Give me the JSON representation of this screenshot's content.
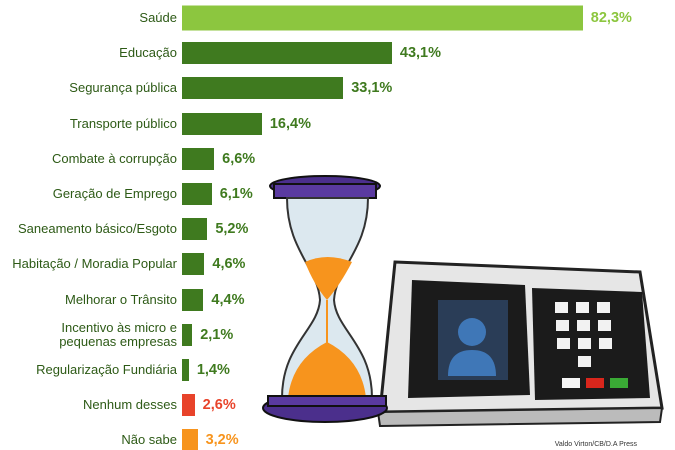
{
  "chart_data": {
    "type": "bar",
    "orientation": "horizontal",
    "categories": [
      "Saúde",
      "Educação",
      "Segurança pública",
      "Transporte público",
      "Combate à corrupção",
      "Geração de Emprego",
      "Saneamento básico/Esgoto",
      "Habitação / Moradia Popular",
      "Melhorar o Trânsito",
      "Incentivo às micro e\npequenas empresas",
      "Regularização Fundiária",
      "Nenhum desses",
      "Não sabe"
    ],
    "values": [
      82.3,
      43.1,
      33.1,
      16.4,
      6.6,
      6.1,
      5.2,
      4.6,
      4.4,
      2.1,
      1.4,
      2.6,
      3.2
    ],
    "value_labels": [
      "82,3%",
      "43,1%",
      "33,1%",
      "16,4%",
      "6,6%",
      "6,1%",
      "5,2%",
      "4,6%",
      "4,4%",
      "2,1%",
      "1,4%",
      "2,6%",
      "3,2%"
    ],
    "colors": [
      "#8cc63f",
      "#3f7a1f",
      "#3f7a1f",
      "#3f7a1f",
      "#3f7a1f",
      "#3f7a1f",
      "#3f7a1f",
      "#3f7a1f",
      "#3f7a1f",
      "#3f7a1f",
      "#3f7a1f",
      "#e8432a",
      "#f7941d"
    ],
    "credit": "Valdo Virton/CB/D.A Press"
  }
}
